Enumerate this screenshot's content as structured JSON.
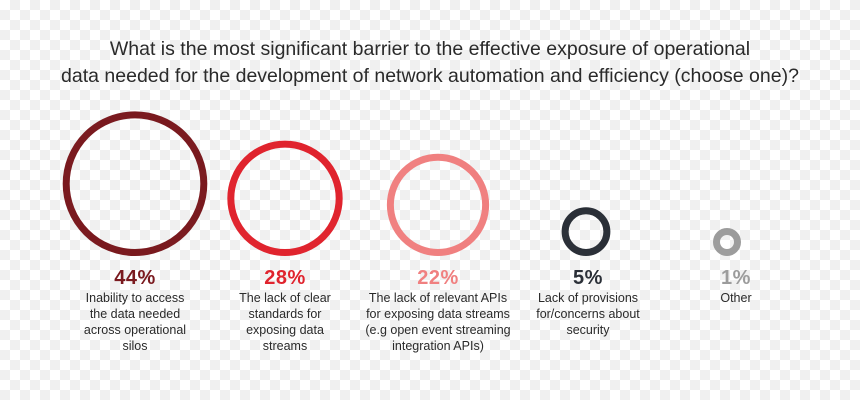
{
  "chart_data": {
    "type": "bubble",
    "title_lines": [
      "What is the most significant barrier to the effective exposure of operational",
      "data needed for the development of network automation and efficiency (choose one)?"
    ],
    "unit": "%",
    "categories": [
      {
        "value": 44,
        "label": "44%",
        "description": "Inability to access the data needed across operational silos",
        "color": "#7a1a1f"
      },
      {
        "value": 28,
        "label": "28%",
        "description": "The lack of clear standards for exposing data streams",
        "color": "#e0242e"
      },
      {
        "value": 22,
        "label": "22%",
        "description": "The lack of relevant APIs for exposing data streams (e.g open event streaming integration APIs)",
        "color": "#f08080"
      },
      {
        "value": 5,
        "label": "5%",
        "description": "Lack of provisions for/concerns about security",
        "color": "#2b3038"
      },
      {
        "value": 1,
        "label": "1%",
        "description": "Other",
        "color": "#9c9c9c"
      }
    ]
  }
}
